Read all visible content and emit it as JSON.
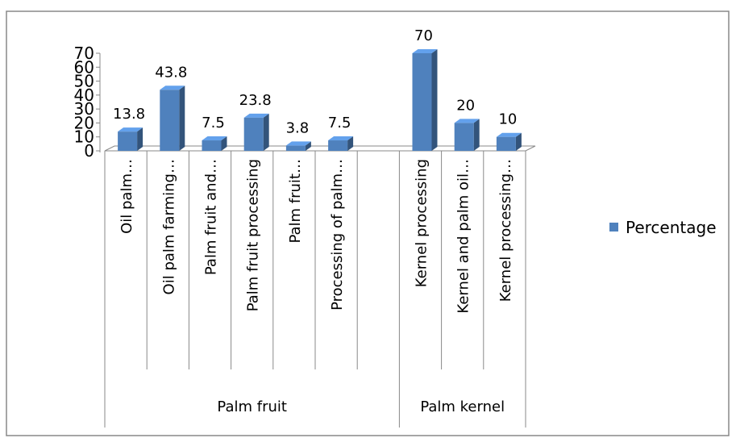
{
  "chart_data": {
    "type": "bar3d",
    "groups": [
      {
        "name": "Palm fruit",
        "categories": [
          "Oil palm…",
          "Oil palm farming…",
          "Palm fruit and…",
          "Palm fruit processing",
          "Palm fruit…",
          "Processing of palm…",
          null
        ]
      },
      {
        "name": "Palm kernel",
        "categories": [
          "Kernel processing",
          "Kernel and palm oil…",
          "Kernel processing…"
        ]
      }
    ],
    "series": [
      {
        "name": "Percentage",
        "color": "#4f81bd",
        "values": [
          13.8,
          43.8,
          7.5,
          23.8,
          3.8,
          7.5,
          null,
          70,
          20,
          10
        ]
      }
    ],
    "ylim": [
      0,
      70
    ],
    "yticks": [
      0,
      10,
      20,
      30,
      40,
      50,
      60,
      70
    ],
    "grid": false,
    "legend": "right"
  }
}
